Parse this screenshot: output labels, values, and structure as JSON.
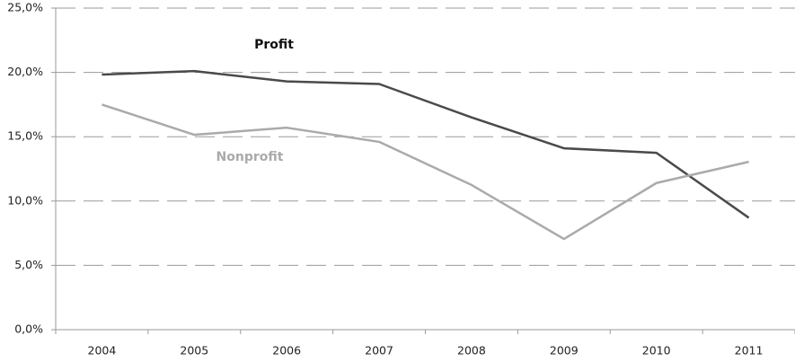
{
  "chart_data": {
    "type": "line",
    "categories": [
      "2004",
      "2005",
      "2006",
      "2007",
      "2008",
      "2009",
      "2010",
      "2011"
    ],
    "series": [
      {
        "name": "Profit",
        "color": "#4a4a4a",
        "values": [
          19.83,
          20.1,
          19.3,
          19.1,
          16.5,
          14.1,
          13.75,
          8.7
        ]
      },
      {
        "name": "Nonprofit",
        "color": "#aaaaaa",
        "values": [
          17.5,
          15.15,
          15.7,
          14.6,
          11.25,
          7.05,
          11.4,
          13.05
        ]
      }
    ],
    "ylim": [
      0,
      25
    ],
    "yticks": [
      {
        "value": 0,
        "label": "0,0%"
      },
      {
        "value": 5,
        "label": "5,0%"
      },
      {
        "value": 10,
        "label": "10,0%"
      },
      {
        "value": 15,
        "label": "15,0%"
      },
      {
        "value": 20,
        "label": "20,0%"
      },
      {
        "value": 25,
        "label": "25,0%"
      }
    ],
    "grid": true
  }
}
